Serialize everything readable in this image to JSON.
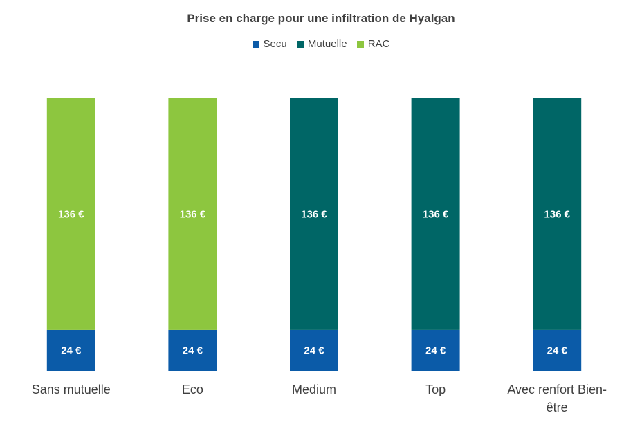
{
  "chart_data": {
    "type": "bar",
    "stacked": true,
    "title": "Prise en charge pour une infiltration de Hyalgan",
    "categories": [
      "Sans mutuelle",
      "Eco",
      "Medium",
      "Top",
      "Avec renfort Bien-être"
    ],
    "series": [
      {
        "name": "Secu",
        "color": "#0b5ba8",
        "values": [
          24,
          24,
          24,
          24,
          24
        ],
        "labels": [
          "24 €",
          "24 €",
          "24 €",
          "24 €",
          "24 €"
        ]
      },
      {
        "name": "Mutuelle",
        "color": "#006666",
        "values": [
          0,
          0,
          136,
          136,
          136
        ],
        "labels": [
          "",
          "",
          "136 €",
          "136 €",
          "136 €"
        ]
      },
      {
        "name": "RAC",
        "color": "#8dc63f",
        "values": [
          136,
          136,
          0,
          0,
          0
        ],
        "labels": [
          "136 €",
          "136 €",
          "",
          "",
          ""
        ]
      }
    ],
    "ylim": [
      0,
      160
    ],
    "grid": false,
    "legend_position": "top"
  }
}
